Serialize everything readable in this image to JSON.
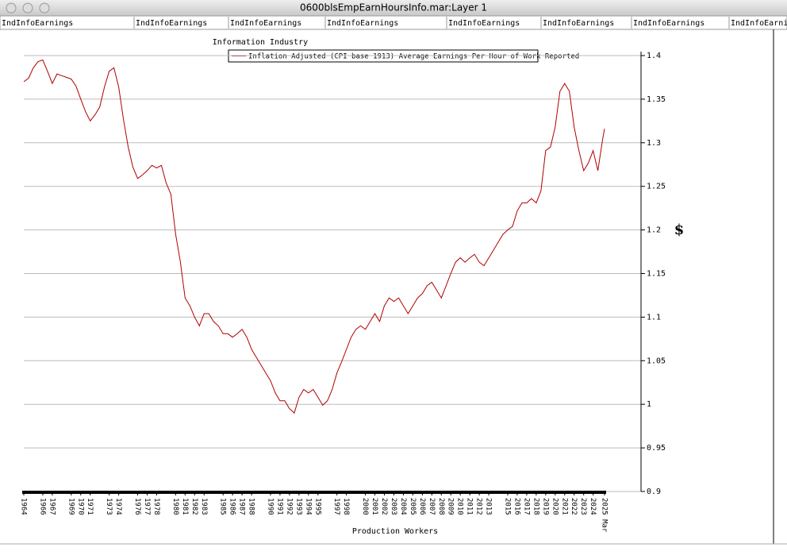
{
  "window_title": "0600blsEmpEarnHoursInfo.mar:Layer 1",
  "tabs": [
    "IndInfoEarnings",
    "IndInfoEarnings",
    "IndInfoEarnings",
    "IndInfoEarnings",
    "IndInfoEarnings",
    "IndInfoEarnings",
    "IndInfoEarnings",
    "IndInfoEarnings"
  ],
  "chart_data": {
    "type": "line",
    "title": "Information Industry",
    "xlabel": "Production Workers",
    "ylabel": "$",
    "x": [
      1964,
      1964.5,
      1965,
      1965.5,
      1966,
      1966.5,
      1967,
      1967.5,
      1968,
      1968.5,
      1969,
      1969.5,
      1970,
      1970.5,
      1971,
      1971.5,
      1972,
      1972.5,
      1973,
      1973.5,
      1974,
      1974.5,
      1975,
      1975.5,
      1976,
      1976.5,
      1977,
      1977.5,
      1978,
      1978.5,
      1979,
      1979.5,
      1980,
      1980.5,
      1981,
      1981.5,
      1982,
      1982.5,
      1983,
      1983.5,
      1984,
      1984.5,
      1985,
      1985.5,
      1986,
      1986.5,
      1987,
      1987.5,
      1988,
      1988.5,
      1989,
      1989.5,
      1990,
      1990.5,
      1991,
      1991.5,
      1992,
      1992.5,
      1993,
      1993.5,
      1994,
      1994.5,
      1995,
      1995.5,
      1996,
      1996.5,
      1997,
      1997.5,
      1998,
      1998.5,
      1999,
      1999.5,
      2000,
      2000.5,
      2001,
      2001.5,
      2002,
      2002.5,
      2003,
      2003.5,
      2004,
      2004.5,
      2005,
      2005.5,
      2006,
      2006.5,
      2007,
      2007.5,
      2008,
      2008.5,
      2009,
      2009.5,
      2010,
      2010.5,
      2011,
      2011.5,
      2012,
      2012.5,
      2013,
      2013.5,
      2014,
      2014.5,
      2015,
      2015.5,
      2016,
      2016.5,
      2017,
      2017.5,
      2018,
      2018.5,
      2019,
      2019.5,
      2020,
      2020.5,
      2021,
      2021.5,
      2022,
      2022.5,
      2023,
      2023.5,
      2024,
      2024.5,
      2025,
      2025.2
    ],
    "series": [
      {
        "name": "Inflation Adjusted (CPI base 1913) Average Earnings Per Hour of Work Reported",
        "color": "#b00000",
        "values": [
          1.37,
          1.374,
          1.386,
          1.393,
          1.395,
          1.382,
          1.368,
          1.379,
          1.377,
          1.375,
          1.373,
          1.365,
          1.35,
          1.336,
          1.325,
          1.332,
          1.341,
          1.364,
          1.382,
          1.386,
          1.364,
          1.327,
          1.295,
          1.272,
          1.259,
          1.263,
          1.268,
          1.274,
          1.271,
          1.274,
          1.254,
          1.241,
          1.195,
          1.163,
          1.122,
          1.113,
          1.1,
          1.09,
          1.104,
          1.104,
          1.095,
          1.09,
          1.081,
          1.081,
          1.077,
          1.081,
          1.086,
          1.077,
          1.063,
          1.054,
          1.045,
          1.036,
          1.027,
          1.013,
          1.004,
          1.004,
          0.995,
          0.99,
          1.008,
          1.017,
          1.013,
          1.017,
          1.008,
          0.999,
          1.004,
          1.017,
          1.036,
          1.049,
          1.063,
          1.077,
          1.086,
          1.09,
          1.086,
          1.095,
          1.104,
          1.095,
          1.113,
          1.122,
          1.118,
          1.122,
          1.113,
          1.104,
          1.113,
          1.122,
          1.127,
          1.136,
          1.14,
          1.131,
          1.122,
          1.136,
          1.15,
          1.163,
          1.168,
          1.163,
          1.168,
          1.172,
          1.163,
          1.159,
          1.168,
          1.177,
          1.186,
          1.195,
          1.2,
          1.204,
          1.222,
          1.231,
          1.231,
          1.236,
          1.231,
          1.245,
          1.291,
          1.295,
          1.318,
          1.359,
          1.368,
          1.359,
          1.318,
          1.291,
          1.268,
          1.277,
          1.291,
          1.268,
          1.304,
          1.316
        ]
      }
    ],
    "xlim": [
      1964,
      2025.2
    ],
    "xticks": [
      1964,
      1966,
      1967,
      1969,
      1970,
      1971,
      1973,
      1974,
      1976,
      1977,
      1978,
      1980,
      1981,
      1982,
      1983,
      1985,
      1986,
      1987,
      1988,
      1990,
      1991,
      1992,
      1993,
      1994,
      1995,
      1997,
      1998,
      2000,
      2001,
      2002,
      2003,
      2004,
      2005,
      2006,
      2007,
      2008,
      2009,
      2010,
      2011,
      2012,
      2013,
      2015,
      2016,
      2017,
      2018,
      2019,
      2020,
      2021,
      2022,
      2023,
      2024,
      {
        "value": 2025.2,
        "label": "2025 Mar"
      }
    ],
    "ylim": [
      0.9,
      1.4
    ],
    "yticks": [
      0.9,
      0.95,
      1,
      1.05,
      1.1,
      1.15,
      1.2,
      1.25,
      1.3,
      1.35,
      1.4
    ],
    "grid": true
  }
}
